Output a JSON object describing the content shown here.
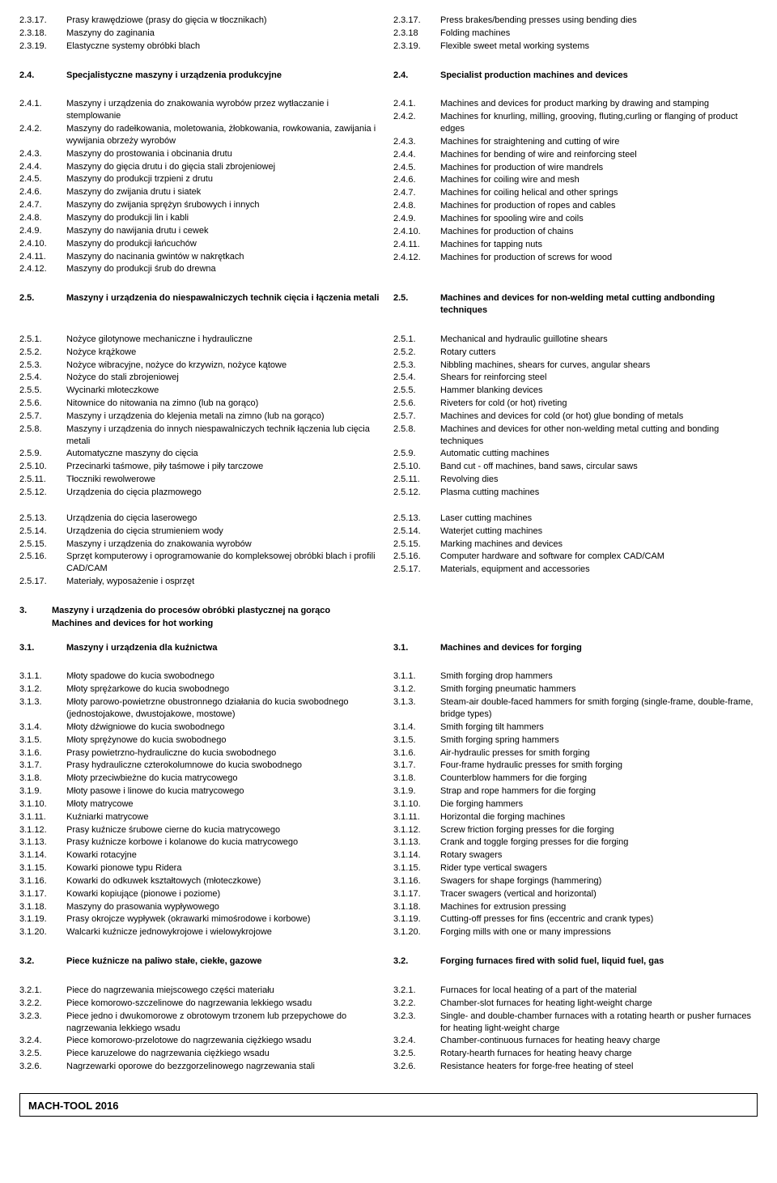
{
  "footer": "MACH-TOOL 2016",
  "blocks": [
    {
      "type": "rows",
      "left": [
        [
          "2.3.17.",
          "Prasy krawędziowe (prasy do gięcia w tłocznikach)"
        ],
        [
          "2.3.18.",
          "Maszyny do zaginania"
        ],
        [
          "2.3.19.",
          "Elastyczne systemy obróbki blach"
        ]
      ],
      "right": [
        [
          "2.3.17.",
          "Press brakes/bending presses using bending dies"
        ],
        [
          "2.3.18",
          "Folding machines"
        ],
        [
          "2.3.19.",
          "Flexible sweet metal working systems"
        ]
      ]
    },
    {
      "type": "spacer"
    },
    {
      "type": "header",
      "left": [
        "2.4.",
        "Specjalistyczne maszyny i urządzenia produkcyjne"
      ],
      "right": [
        "2.4.",
        "Specialist production machines and devices"
      ]
    },
    {
      "type": "spacer"
    },
    {
      "type": "rows",
      "left": [
        [
          "2.4.1.",
          "Maszyny i urządzenia do znakowania wyrobów przez wytłaczanie i stemplowanie"
        ],
        [
          "2.4.2.",
          "Maszyny do radełkowania, moletowania, żłobkowania, rowkowania, zawijania i wywijania obrzeży wyrobów"
        ],
        [
          "2.4.3.",
          "Maszyny do prostowania i obcinania drutu"
        ],
        [
          "2.4.4.",
          "Maszyny do gięcia drutu i do gięcia stali zbrojeniowej"
        ],
        [
          "2.4.5.",
          "Maszyny do produkcji trzpieni z drutu"
        ],
        [
          "2.4.6.",
          "Maszyny do zwijania drutu i siatek"
        ],
        [
          "2.4.7.",
          "Maszyny do zwijania sprężyn śrubowych i innych"
        ],
        [
          "2.4.8.",
          "Maszyny do produkcji lin i kabli"
        ],
        [
          "2.4.9.",
          "Maszyny do nawijania drutu i cewek"
        ],
        [
          "2.4.10.",
          "Maszyny do produkcji łańcuchów"
        ],
        [
          "2.4.11.",
          "Maszyny do nacinania gwintów w nakrętkach"
        ],
        [
          "2.4.12.",
          "Maszyny do produkcji śrub do drewna"
        ]
      ],
      "right": [
        [
          "2.4.1.",
          "Machines and devices for product marking by drawing and stamping"
        ],
        [
          "2.4.2.",
          "Machines for knurling, milling, grooving, fluting,curling or flanging of product edges"
        ],
        [
          "2.4.3.",
          "Machines for straightening and cutting of wire"
        ],
        [
          "2.4.4.",
          "Machines for bending of wire and reinforcing steel"
        ],
        [
          "2.4.5.",
          "Machines for production of wire mandrels"
        ],
        [
          "2.4.6.",
          "Machines for coiling wire and mesh"
        ],
        [
          "2.4.7.",
          "Machines for coiling helical and other springs"
        ],
        [
          "2.4.8.",
          "Machines for production of ropes and cables"
        ],
        [
          "2.4.9.",
          "Machines for spooling wire and coils"
        ],
        [
          "2.4.10.",
          "Machines for production of chains"
        ],
        [
          "2.4.11.",
          "Machines for tapping nuts"
        ],
        [
          "2.4.12.",
          "Machines for production of screws for wood"
        ]
      ]
    },
    {
      "type": "spacer"
    },
    {
      "type": "header",
      "left": [
        "2.5.",
        "Maszyny i urządzenia do niespawalniczych technik cięcia i łączenia metali"
      ],
      "right": [
        "2.5.",
        "Machines and devices for non-welding metal cutting andbonding techniques"
      ]
    },
    {
      "type": "spacer"
    },
    {
      "type": "rows",
      "left": [
        [
          "2.5.1.",
          "Nożyce gilotynowe mechaniczne i hydrauliczne"
        ],
        [
          "2.5.2.",
          "Nożyce krążkowe"
        ],
        [
          "2.5.3.",
          "Nożyce wibracyjne, nożyce do krzywizn, nożyce kątowe"
        ],
        [
          "2.5.4.",
          "Nożyce do stali zbrojeniowej"
        ],
        [
          "2.5.5.",
          "Wycinarki młoteczkowe"
        ],
        [
          "2.5.6.",
          "Nitownice do nitowania na zimno (lub na gorąco)"
        ],
        [
          "2.5.7.",
          "Maszyny i urządzenia do klejenia metali na zimno (lub na gorąco)"
        ],
        [
          "2.5.8.",
          "Maszyny i urządzenia do innych niespawalniczych technik łączenia lub cięcia metali"
        ],
        [
          "2.5.9.",
          "Automatyczne maszyny do cięcia"
        ],
        [
          "2.5.10.",
          "Przecinarki taśmowe, piły taśmowe i piły tarczowe"
        ],
        [
          "2.5.11.",
          "Tłoczniki rewolwerowe"
        ],
        [
          "2.5.12.",
          "Urządzenia do cięcia plazmowego"
        ]
      ],
      "right": [
        [
          "2.5.1.",
          "Mechanical and hydraulic guillotine shears"
        ],
        [
          "2.5.2.",
          "Rotary cutters"
        ],
        [
          "2.5.3.",
          "Nibbling machines, shears for curves, angular shears"
        ],
        [
          "2.5.4.",
          "Shears for reinforcing steel"
        ],
        [
          "2.5.5.",
          "Hammer blanking devices"
        ],
        [
          "2.5.6.",
          "Riveters for cold (or hot) riveting"
        ],
        [
          "2.5.7.",
          "Machines and devices for cold (or hot) glue bonding of metals"
        ],
        [
          "2.5.8.",
          "Machines and devices for other non-welding metal cutting and bonding techniques"
        ],
        [
          "2.5.9.",
          "Automatic cutting machines"
        ],
        [
          "2.5.10.",
          "Band cut - off machines, band saws, circular saws"
        ],
        [
          "2.5.11.",
          "Revolving dies"
        ],
        [
          "2.5.12.",
          "Plasma cutting machines"
        ]
      ]
    },
    {
      "type": "small-spacer"
    },
    {
      "type": "rows",
      "left": [
        [
          "2.5.13.",
          "Urządzenia do cięcia laserowego"
        ],
        [
          "2.5.14.",
          "Urządzenia do cięcia strumieniem wody"
        ],
        [
          "2.5.15.",
          "Maszyny i urządzenia do znakowania wyrobów"
        ],
        [
          "2.5.16.",
          "Sprzęt komputerowy i oprogramowanie do kompleksowej obróbki blach i profili CAD/CAM"
        ],
        [
          "2.5.17.",
          "Materiały, wyposażenie i osprzęt"
        ]
      ],
      "right": [
        [
          "2.5.13.",
          "Laser cutting machines"
        ],
        [
          "2.5.14.",
          "Waterjet cutting machines"
        ],
        [
          "2.5.15.",
          "Marking machines and devices"
        ],
        [
          "2.5.16.",
          "Computer hardware and software for complex CAD/CAM"
        ],
        [
          "2.5.17.",
          "Materials, equipment and accessories"
        ]
      ]
    },
    {
      "type": "spacer"
    },
    {
      "type": "main-header",
      "num": "3.",
      "line1": "Maszyny i urządzenia do procesów obróbki plastycznej na gorąco",
      "line2": "Machines and devices for hot working"
    },
    {
      "type": "spacer"
    },
    {
      "type": "header",
      "left": [
        "3.1.",
        "Maszyny i urządzenia dla kuźnictwa"
      ],
      "right": [
        "3.1.",
        "Machines and devices for forging"
      ]
    },
    {
      "type": "spacer"
    },
    {
      "type": "rows",
      "left": [
        [
          "3.1.1.",
          "Młoty spadowe do kucia swobodnego"
        ],
        [
          "3.1.2.",
          "Młoty sprężarkowe do kucia swobodnego"
        ],
        [
          "3.1.3.",
          "Młoty parowo-powietrzne obustronnego działania do kucia swobodnego (jednostojakowe, dwustojakowe, mostowe)"
        ],
        [
          "3.1.4.",
          "Młoty dźwigniowe do kucia swobodnego"
        ],
        [
          "3.1.5.",
          "Młoty sprężynowe do kucia swobodnego"
        ],
        [
          "3.1.6.",
          "Prasy powietrzno-hydrauliczne do kucia swobodnego"
        ],
        [
          "3.1.7.",
          "Prasy hydrauliczne czterokolumnowe do kucia swobodnego"
        ],
        [
          "3.1.8.",
          "Młoty przeciwbieżne do kucia matrycowego"
        ],
        [
          "3.1.9.",
          "Młoty pasowe i linowe do kucia matrycowego"
        ],
        [
          "3.1.10.",
          "Młoty matrycowe"
        ],
        [
          "3.1.11.",
          "Kuźniarki matrycowe"
        ],
        [
          "3.1.12.",
          "Prasy kuźnicze śrubowe cierne do kucia matrycowego"
        ],
        [
          "3.1.13.",
          "Prasy kuźnicze korbowe i kolanowe do kucia matrycowego"
        ],
        [
          "3.1.14.",
          "Kowarki rotacyjne"
        ],
        [
          "3.1.15.",
          "Kowarki pionowe typu Ridera"
        ],
        [
          "3.1.16.",
          "Kowarki do odkuwek kształtowych (młoteczkowe)"
        ],
        [
          "3.1.17.",
          "Kowarki kopiujące (pionowe i poziome)"
        ],
        [
          "3.1.18.",
          "Maszyny do prasowania wypływowego"
        ],
        [
          "3.1.19.",
          "Prasy okrojcze wypływek (okrawarki mimośrodowe i korbowe)"
        ],
        [
          "3.1.20.",
          "Walcarki kuźnicze jednowykrojowe i wielowykrojowe"
        ]
      ],
      "right": [
        [
          "3.1.1.",
          "Smith forging drop hammers"
        ],
        [
          "3.1.2.",
          "Smith forging pneumatic hammers"
        ],
        [
          "3.1.3.",
          "Steam-air double-faced hammers for smith forging (single-frame, double-frame, bridge types)"
        ],
        [
          "3.1.4.",
          "Smith forging tilt hammers"
        ],
        [
          "3.1.5.",
          "Smith forging spring hammers"
        ],
        [
          "3.1.6.",
          "Air-hydraulic presses for smith forging"
        ],
        [
          "3.1.7.",
          "Four-frame hydraulic presses for smith forging"
        ],
        [
          "3.1.8.",
          "Counterblow hammers for die forging"
        ],
        [
          "3.1.9.",
          "Strap and rope hammers for die forging"
        ],
        [
          "3.1.10.",
          "Die forging hammers"
        ],
        [
          "3.1.11.",
          "Horizontal die forging machines"
        ],
        [
          "3.1.12.",
          "Screw friction forging presses for die forging"
        ],
        [
          "3.1.13.",
          "Crank and toggle forging presses for die forging"
        ],
        [
          "3.1.14.",
          "Rotary swagers"
        ],
        [
          "3.1.15.",
          "Rider type vertical swagers"
        ],
        [
          "3.1.16.",
          "Swagers for shape forgings (hammering)"
        ],
        [
          "3.1.17.",
          "Tracer swagers (vertical and horizontal)"
        ],
        [
          "3.1.18.",
          "Machines for extrusion pressing"
        ],
        [
          "3.1.19.",
          "Cutting-off presses for fins (eccentric and crank types)"
        ],
        [
          "3.1.20.",
          "Forging mills with one or many impressions"
        ]
      ]
    },
    {
      "type": "spacer"
    },
    {
      "type": "header",
      "left": [
        "3.2.",
        "Piece kuźnicze na paliwo stałe, ciekłe, gazowe"
      ],
      "right": [
        "3.2.",
        "Forging furnaces fired with solid fuel, liquid fuel, gas"
      ]
    },
    {
      "type": "spacer"
    },
    {
      "type": "rows",
      "left": [
        [
          "3.2.1.",
          "Piece do nagrzewania miejscowego części materiału"
        ],
        [
          "3.2.2.",
          "Piece komorowo-szczelinowe do nagrzewania lekkiego wsadu"
        ],
        [
          "3.2.3.",
          "Piece jedno i dwukomorowe z obrotowym trzonem lub przepychowe do nagrzewania lekkiego wsadu"
        ],
        [
          "3.2.4.",
          "Piece komorowo-przelotowe do nagrzewania ciężkiego wsadu"
        ],
        [
          "3.2.5.",
          "Piece karuzelowe do nagrzewania ciężkiego wsadu"
        ],
        [
          "3.2.6.",
          "Nagrzewarki oporowe do bezzgorzelinowego nagrzewania stali"
        ]
      ],
      "right": [
        [
          "3.2.1.",
          "Furnaces for local heating of a part of the material"
        ],
        [
          "3.2.2.",
          "Chamber-slot furnaces for heating light-weight charge"
        ],
        [
          "3.2.3.",
          "Single- and double-chamber furnaces with a rotating hearth or pusher furnaces for heating light-weight charge"
        ],
        [
          "3.2.4.",
          "Chamber-continuous furnaces for heating heavy charge"
        ],
        [
          "3.2.5.",
          "Rotary-hearth furnaces for heating heavy charge"
        ],
        [
          "3.2.6.",
          "Resistance heaters for forge-free heating of steel"
        ]
      ]
    }
  ]
}
